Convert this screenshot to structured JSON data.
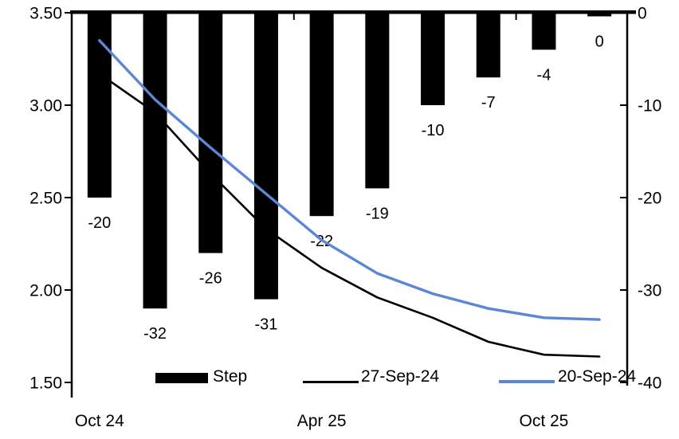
{
  "chart_data": {
    "type": "combo-bar-line",
    "n_categories": 10,
    "series": [
      {
        "name": "Step",
        "type": "bar",
        "axis": "right",
        "color": "#000000",
        "values": [
          -20,
          -32,
          -26,
          -31,
          -22,
          -19,
          -10,
          -7,
          -4,
          0
        ],
        "data_labels": [
          "-20",
          "-32",
          "-26",
          "-31",
          "-22",
          "-19",
          "-10",
          "-7",
          "-4",
          "0"
        ]
      },
      {
        "name": "27-Sep-24",
        "type": "line",
        "axis": "left",
        "color": "#000000",
        "values": [
          3.17,
          2.96,
          2.63,
          2.33,
          2.12,
          1.96,
          1.85,
          1.72,
          1.65,
          1.64
        ]
      },
      {
        "name": "20-Sep-24",
        "type": "line",
        "axis": "left",
        "color": "#5b87d5",
        "values": [
          3.35,
          3.03,
          2.77,
          2.52,
          2.27,
          2.09,
          1.98,
          1.9,
          1.85,
          1.84
        ]
      }
    ],
    "left_axis": {
      "min": 1.5,
      "max": 3.5,
      "tick_labels": [
        "3.50",
        "3.00",
        "2.50",
        "2.00",
        "1.50"
      ],
      "tick_values": [
        3.5,
        3.0,
        2.5,
        2.0,
        1.5
      ]
    },
    "right_axis": {
      "min": -40,
      "max": 0,
      "tick_labels": [
        "0",
        "-10",
        "-20",
        "-30",
        "-40"
      ],
      "tick_values": [
        0,
        -10,
        -20,
        -30,
        -40
      ]
    },
    "x_axis": {
      "labels": [
        {
          "text": "Oct 24",
          "category_index": 0
        },
        {
          "text": "Apr 25",
          "category_index": 4
        },
        {
          "text": "Oct 25",
          "category_index": 8
        }
      ],
      "boundary_tick_after_categories": [
        4,
        8
      ]
    },
    "legend": {
      "items": [
        {
          "label": "Step",
          "swatch": "bar-black"
        },
        {
          "label": "27-Sep-24",
          "swatch": "line-black"
        },
        {
          "label": "20-Sep-24",
          "swatch": "line-blue"
        }
      ]
    },
    "grid": false,
    "background": "#ffffff"
  }
}
